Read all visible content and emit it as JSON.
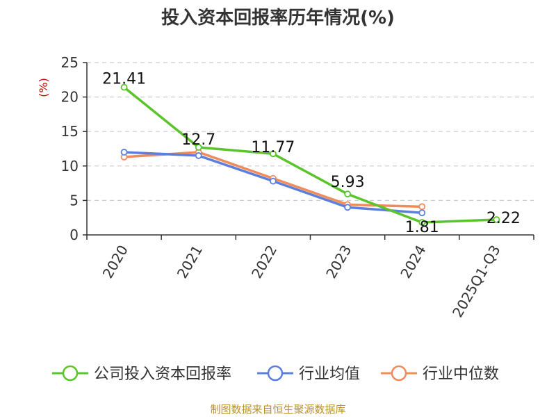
{
  "colors": {
    "axis": "#333333",
    "grid": "#cccccc"
  },
  "chart_data": {
    "type": "line",
    "title": "投入资本回报率历年情况(%)",
    "unit_label": "(%)",
    "categories": [
      "2020",
      "2021",
      "2022",
      "2023",
      "2024",
      "2025Q1-Q3"
    ],
    "ylim": [
      0,
      25
    ],
    "yticks": [
      0,
      5,
      10,
      15,
      20,
      25
    ],
    "grid": true,
    "legend_position": "bottom",
    "series": [
      {
        "name": "公司投入资本回报率",
        "color": "#5bc42b",
        "values": [
          21.41,
          12.7,
          11.77,
          5.93,
          1.81,
          2.22
        ],
        "labels": [
          "21.41",
          "12.7",
          "11.77",
          "5.93",
          "1.81",
          "2.22"
        ]
      },
      {
        "name": "行业均值",
        "color": "#5b7fdb",
        "values": [
          12.0,
          11.5,
          7.8,
          4.0,
          3.2,
          null
        ]
      },
      {
        "name": "行业中位数",
        "color": "#f08b5a",
        "values": [
          11.3,
          12.0,
          8.2,
          4.4,
          4.1,
          null
        ]
      }
    ],
    "source": "制图数据来自恒生聚源数据库"
  }
}
